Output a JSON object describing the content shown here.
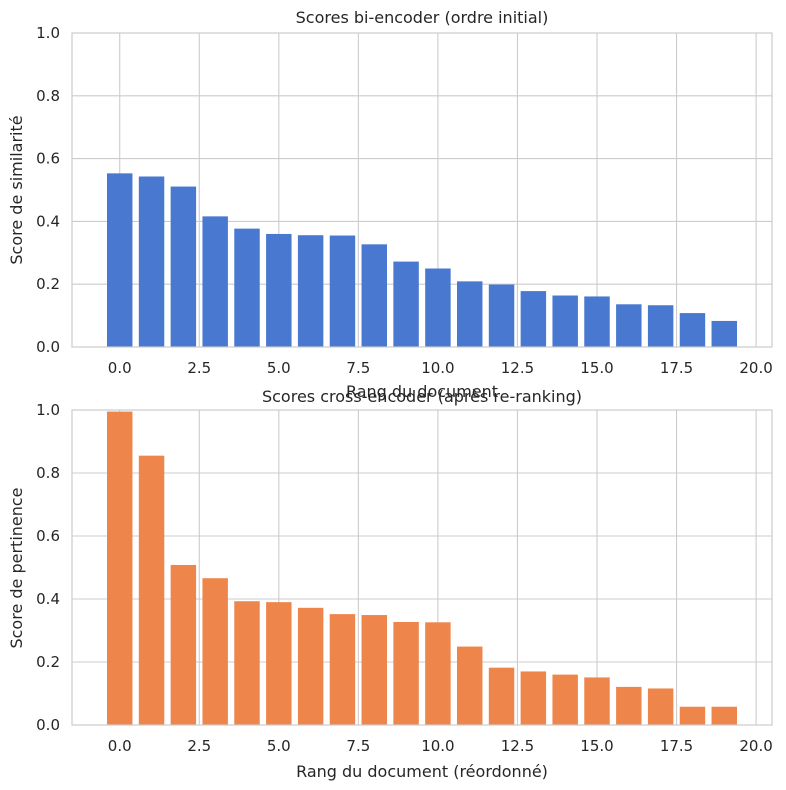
{
  "chart_data": [
    {
      "type": "bar",
      "title": "Scores bi-encoder (ordre initial)",
      "xlabel": "Rang du document",
      "ylabel": "Score de similarité",
      "color": "#4878d0",
      "x": [
        0,
        1,
        2,
        3,
        4,
        5,
        6,
        7,
        8,
        9,
        10,
        11,
        12,
        13,
        14,
        15,
        16,
        17,
        18,
        19
      ],
      "values": [
        0.553,
        0.543,
        0.511,
        0.416,
        0.377,
        0.36,
        0.356,
        0.355,
        0.327,
        0.272,
        0.25,
        0.209,
        0.199,
        0.178,
        0.164,
        0.161,
        0.136,
        0.133,
        0.108,
        0.083
      ],
      "xlim": [
        -1.5,
        20.5
      ],
      "ylim": [
        0,
        1
      ],
      "xticks": [
        0.0,
        2.5,
        5.0,
        7.5,
        10.0,
        12.5,
        15.0,
        17.5,
        20.0
      ],
      "xtick_labels": [
        "0.0",
        "2.5",
        "5.0",
        "7.5",
        "10.0",
        "12.5",
        "15.0",
        "17.5",
        "20.0"
      ],
      "yticks": [
        0.0,
        0.2,
        0.4,
        0.6,
        0.8,
        1.0
      ],
      "ytick_labels": [
        "0.0",
        "0.2",
        "0.4",
        "0.6",
        "0.8",
        "1.0"
      ],
      "grid": true
    },
    {
      "type": "bar",
      "title": "Scores cross-encoder (après re-ranking)",
      "xlabel": "Rang du document (réordonné)",
      "ylabel": "Score de pertinence",
      "color": "#ee854a",
      "x": [
        0,
        1,
        2,
        3,
        4,
        5,
        6,
        7,
        8,
        9,
        10,
        11,
        12,
        13,
        14,
        15,
        16,
        17,
        18,
        19
      ],
      "values": [
        0.995,
        0.855,
        0.508,
        0.466,
        0.393,
        0.39,
        0.372,
        0.352,
        0.349,
        0.327,
        0.326,
        0.249,
        0.182,
        0.17,
        0.16,
        0.151,
        0.121,
        0.116,
        0.058,
        0.058
      ],
      "xlim": [
        -1.5,
        20.5
      ],
      "ylim": [
        0,
        1
      ],
      "xticks": [
        0.0,
        2.5,
        5.0,
        7.5,
        10.0,
        12.5,
        15.0,
        17.5,
        20.0
      ],
      "xtick_labels": [
        "0.0",
        "2.5",
        "5.0",
        "7.5",
        "10.0",
        "12.5",
        "15.0",
        "17.5",
        "20.0"
      ],
      "yticks": [
        0.0,
        0.2,
        0.4,
        0.6,
        0.8,
        1.0
      ],
      "ytick_labels": [
        "0.0",
        "0.2",
        "0.4",
        "0.6",
        "0.8",
        "1.0"
      ],
      "grid": true
    }
  ]
}
